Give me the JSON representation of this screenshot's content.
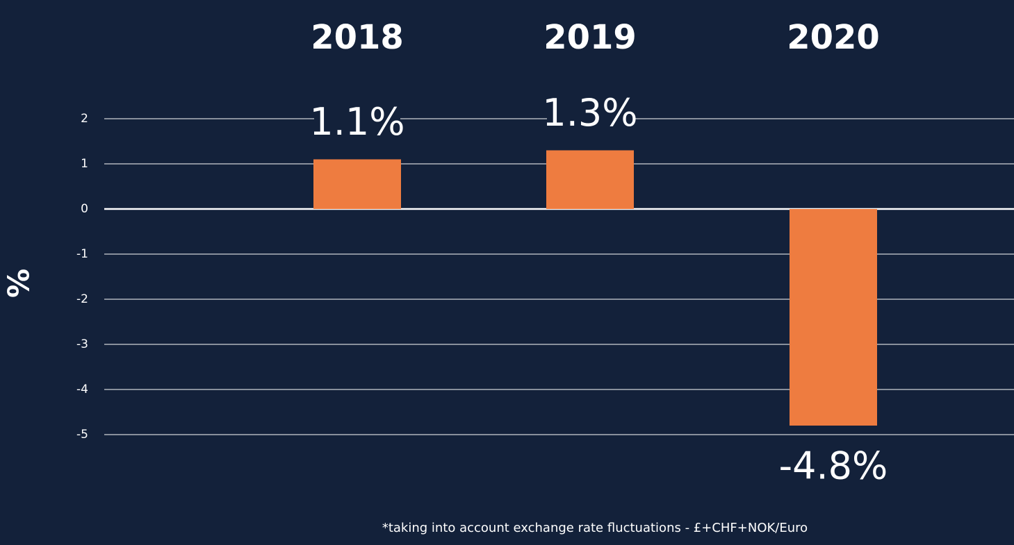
{
  "colors": {
    "background": "#13213a",
    "bar": "#ee7c40",
    "grid": "#ffffff",
    "text": "#ffffff"
  },
  "chart_data": {
    "type": "bar",
    "categories": [
      "2018",
      "2019",
      "2020"
    ],
    "values": [
      1.1,
      1.3,
      -4.8
    ],
    "data_labels": [
      "1.1%",
      "1.3%",
      "-4.8%"
    ],
    "ylabel": "%",
    "xlabel": "",
    "ylim": [
      -5,
      2
    ],
    "yticks": [
      2,
      1,
      0,
      -1,
      -2,
      -3,
      -4,
      -5
    ],
    "grid": true,
    "category_labels_position": "top",
    "footnote": "*taking into account exchange rate fluctuations - £+CHF+NOK/Euro"
  }
}
